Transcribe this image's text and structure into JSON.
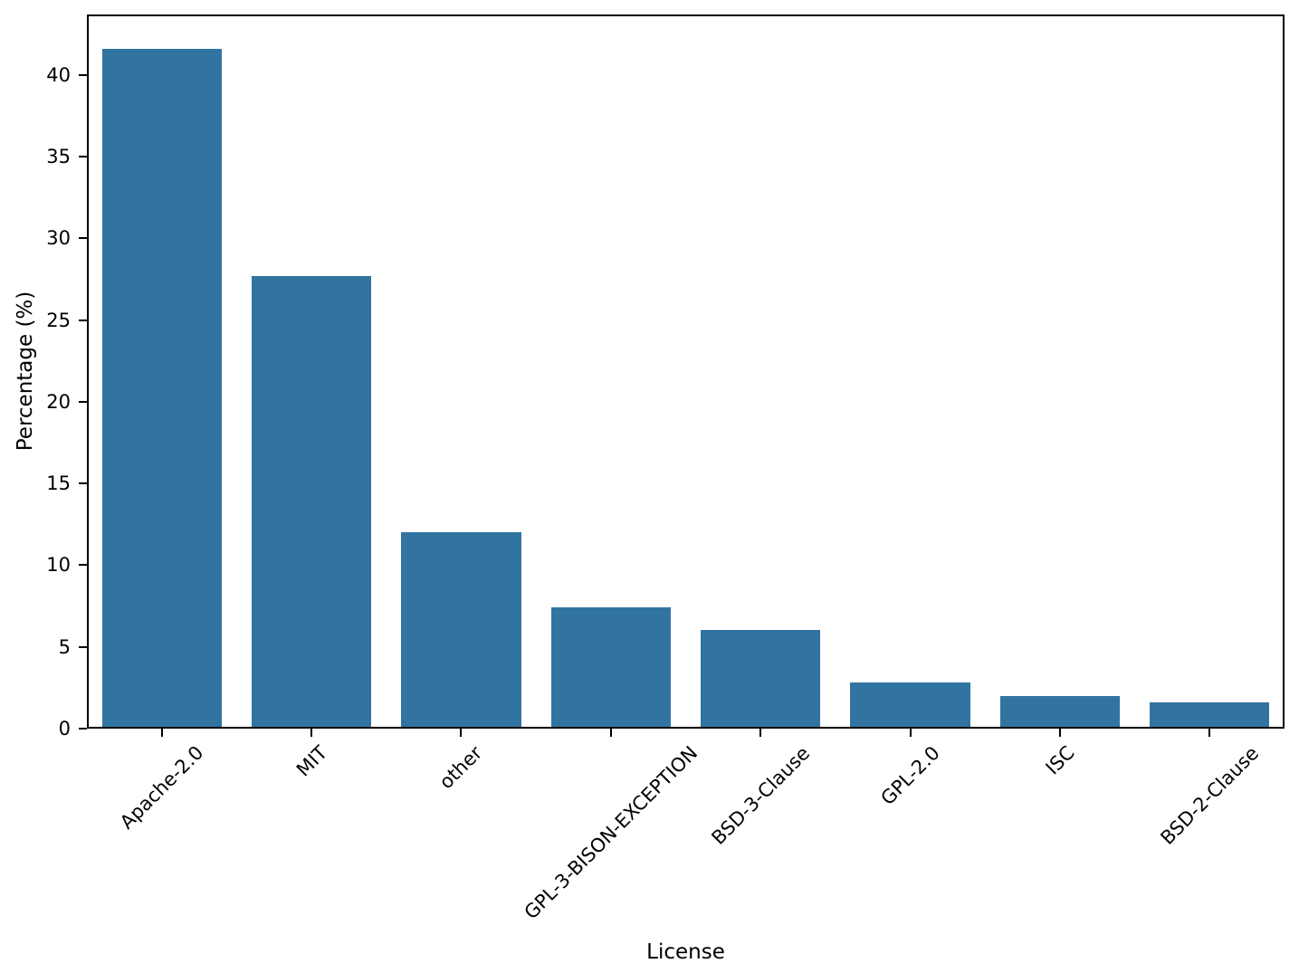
{
  "chart_data": {
    "type": "bar",
    "title": "",
    "xlabel": "License",
    "ylabel": "Percentage (%)",
    "categories": [
      "Apache-2.0",
      "MIT",
      "other",
      "GPL-3-BISON-EXCEPTION",
      "BSD-3-Clause",
      "GPL-2.0",
      "ISC",
      "BSD-2-Clause"
    ],
    "values": [
      41.5,
      27.6,
      11.9,
      7.3,
      5.9,
      2.7,
      1.9,
      1.5
    ],
    "yticks": [
      0,
      5,
      10,
      15,
      20,
      25,
      30,
      35,
      40
    ],
    "ylim": [
      0,
      43.7
    ],
    "bar_color": "#3274A1",
    "axis_color": "#000000",
    "grid": false,
    "legend_position": "none",
    "xtick_rotation_deg": 45
  }
}
